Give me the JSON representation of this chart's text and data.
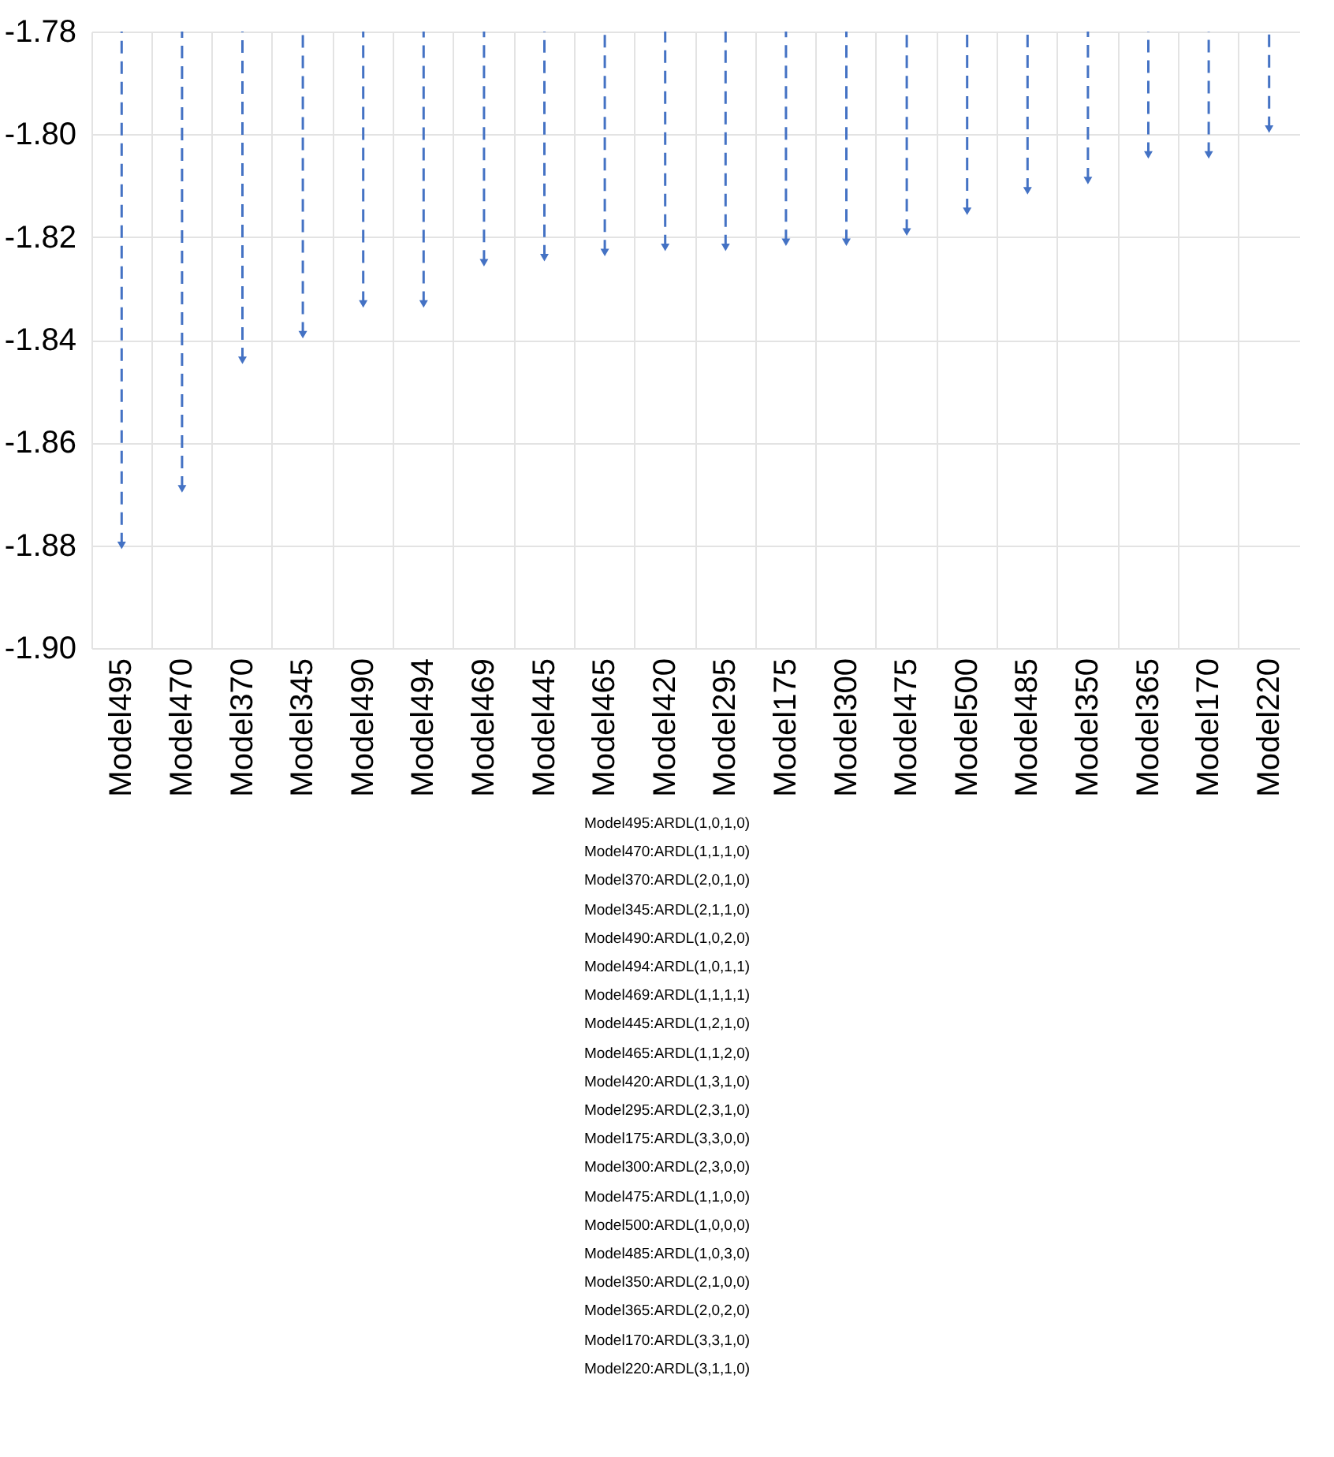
{
  "chart_data": {
    "type": "lollipop",
    "categories": [
      "Model495",
      "Model470",
      "Model370",
      "Model345",
      "Model490",
      "Model494",
      "Model469",
      "Model445",
      "Model465",
      "Model420",
      "Model295",
      "Model175",
      "Model300",
      "Model475",
      "Model500",
      "Model485",
      "Model350",
      "Model365",
      "Model170",
      "Model220"
    ],
    "values": [
      -1.88,
      -1.869,
      -1.844,
      -1.839,
      -1.833,
      -1.833,
      -1.825,
      -1.824,
      -1.823,
      -1.822,
      -1.822,
      -1.821,
      -1.821,
      -1.819,
      -1.815,
      -1.811,
      -1.809,
      -1.804,
      -1.804,
      -1.799
    ],
    "color": "#4472c4",
    "ylim": [
      -1.9,
      -1.78
    ],
    "yticks": [
      {
        "value": -1.9,
        "label": "-1.90"
      },
      {
        "value": -1.88,
        "label": "-1.88"
      },
      {
        "value": -1.86,
        "label": "-1.86"
      },
      {
        "value": -1.84,
        "label": "-1.84"
      },
      {
        "value": -1.82,
        "label": "-1.82"
      },
      {
        "value": -1.8,
        "label": "-1.80"
      },
      {
        "value": -1.78,
        "label": "-1.78"
      }
    ],
    "grid": true,
    "marker": "triangle",
    "line_style": "dashed",
    "annotations": [
      "Model495:ARDL(1,0,1,0)",
      "Model470:ARDL(1,1,1,0)",
      "Model370:ARDL(2,0,1,0)",
      "Model345:ARDL(2,1,1,0)",
      "Model490:ARDL(1,0,2,0)",
      "Model494:ARDL(1,0,1,1)",
      "Model469:ARDL(1,1,1,1)",
      "Model445:ARDL(1,2,1,0)",
      "Model465:ARDL(1,1,2,0)",
      "Model420:ARDL(1,3,1,0)",
      "Model295:ARDL(2,3,1,0)",
      "Model175:ARDL(3,3,0,0)",
      "Model300:ARDL(2,3,0,0)",
      "Model475:ARDL(1,1,0,0)",
      "Model500:ARDL(1,0,0,0)",
      "Model485:ARDL(1,0,3,0)",
      "Model350:ARDL(2,1,0,0)",
      "Model365:ARDL(2,0,2,0)",
      "Model170:ARDL(3,3,1,0)",
      "Model220:ARDL(3,1,1,0)"
    ]
  }
}
